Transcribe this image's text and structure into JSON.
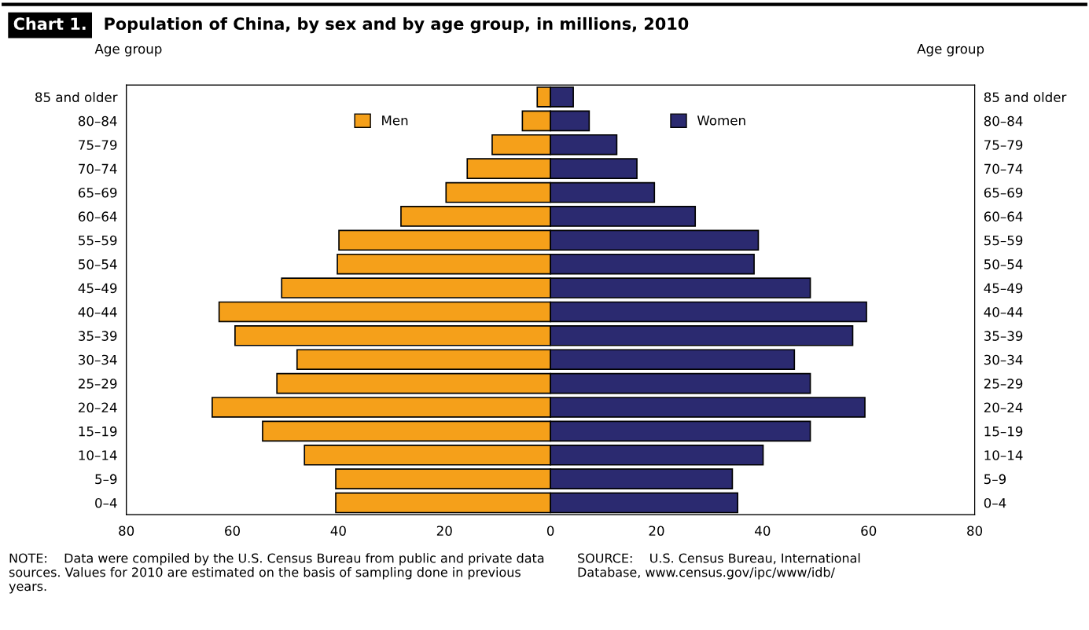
{
  "chart_data": {
    "type": "bar",
    "orientation": "horizontal",
    "stacked": true,
    "title": "Chart 1.",
    "subtitle": "Population of China, by sex and by age group, in millions, 2010",
    "ylabel": "Age group",
    "y2label": "Age group",
    "categories": [
      "85 and older",
      "80–84",
      "75–79",
      "70–74",
      "65–69",
      "60–64",
      "55–59",
      "50–54",
      "45–49",
      "40–44",
      "35–39",
      "30–34",
      "25–29",
      "20–24",
      "15–19",
      "10–14",
      "5–9",
      "0–4"
    ],
    "series": [
      {
        "name": "Men",
        "color": "#f5a01a",
        "values": [
          -2.5,
          -5.3,
          -11.0,
          -15.7,
          -19.7,
          -28.2,
          -39.9,
          -40.2,
          -50.7,
          -62.5,
          -59.5,
          -47.8,
          -51.6,
          -63.8,
          -54.3,
          -46.4,
          -40.5,
          -40.5
        ]
      },
      {
        "name": "Women",
        "color": "#2b2a70",
        "values": [
          4.3,
          7.3,
          12.5,
          16.3,
          19.6,
          27.3,
          39.2,
          38.4,
          49.0,
          59.6,
          57.0,
          46.0,
          49.0,
          59.3,
          49.0,
          40.1,
          34.3,
          35.3
        ]
      }
    ],
    "xlim": [
      -80,
      80
    ],
    "xticks": [
      {
        "value": -80,
        "label": "80"
      },
      {
        "value": -60,
        "label": "60"
      },
      {
        "value": -40,
        "label": "40"
      },
      {
        "value": -20,
        "label": "20"
      },
      0,
      20,
      40,
      60,
      80
    ],
    "legend": "top",
    "grid": false,
    "annotations": [
      "NOTE:    Data were compiled by the U.S. Census Bureau from public and private data sources. Values for 2010 are estimated on the basis of sampling done in previous years.",
      "SOURCE:    U.S. Census Bureau, International Database, www.census.gov/ipc/www/idb/"
    ]
  }
}
